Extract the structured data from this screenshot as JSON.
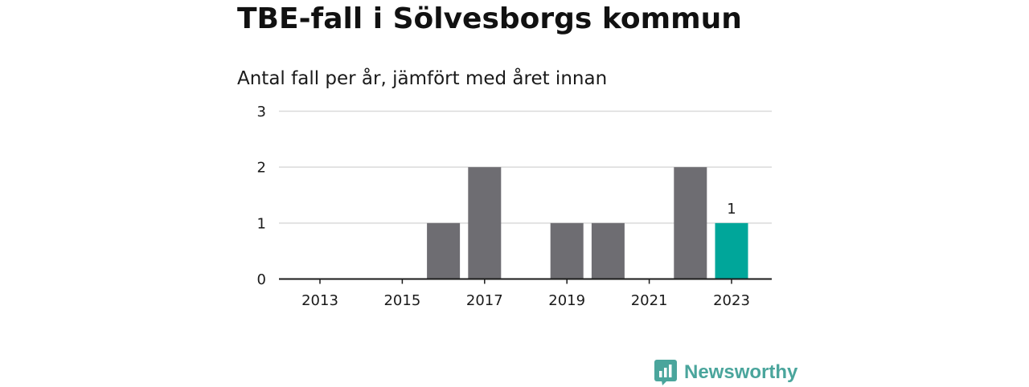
{
  "title": "TBE-fall i Sölvesborgs kommun",
  "subtitle": "Antal fall per år, jämfört med året innan",
  "brand": {
    "name": "Newsworthy",
    "icon": "bar-chart-speech-bubble-icon",
    "color": "#4aa59c"
  },
  "colors": {
    "bar": "#6e6d72",
    "highlight": "#00a69a",
    "grid": "#d9d9d9",
    "axis": "#1a1a1a"
  },
  "chart_data": {
    "type": "bar",
    "categories": [
      "2013",
      "2014",
      "2015",
      "2016",
      "2017",
      "2018",
      "2019",
      "2020",
      "2021",
      "2022",
      "2023"
    ],
    "values": [
      0,
      0,
      0,
      1,
      2,
      0,
      1,
      1,
      0,
      2,
      1
    ],
    "highlight_index": 10,
    "x_tick_labels": [
      "2013",
      "2015",
      "2017",
      "2019",
      "2021",
      "2023"
    ],
    "y_ticks": [
      0,
      1,
      2,
      3
    ],
    "ylim": [
      0,
      3
    ],
    "data_labels": [
      {
        "index": 10,
        "text": "1"
      }
    ],
    "xlabel": "",
    "ylabel": "",
    "grid": true,
    "legend": false
  }
}
